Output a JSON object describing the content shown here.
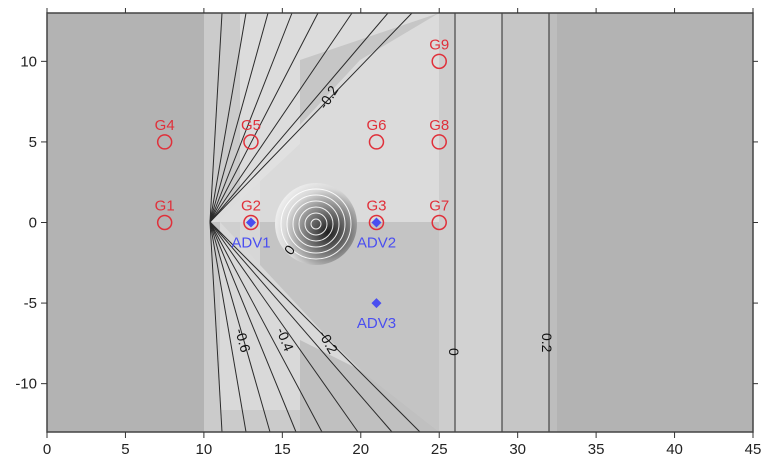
{
  "colors": {
    "background": "#b3b3b3",
    "gauge": "#e0303a",
    "adv": "#4a4ef0",
    "contour": "#2b2b2b"
  },
  "chart_data": {
    "type": "contour",
    "xlim": [
      0,
      45
    ],
    "ylim": [
      -13,
      13
    ],
    "x_ticks": [
      "0",
      "5",
      "10",
      "15",
      "20",
      "25",
      "30",
      "35",
      "40",
      "45"
    ],
    "y_ticks": [
      "10",
      "5",
      "0",
      "-5",
      "-10"
    ],
    "grid": false,
    "gauges": [
      {
        "name": "G1",
        "x": 7.5,
        "y": 0
      },
      {
        "name": "G2",
        "x": 13,
        "y": 0
      },
      {
        "name": "G3",
        "x": 21,
        "y": 0
      },
      {
        "name": "G4",
        "x": 7.5,
        "y": 5
      },
      {
        "name": "G5",
        "x": 13,
        "y": 5
      },
      {
        "name": "G6",
        "x": 21,
        "y": 5
      },
      {
        "name": "G7",
        "x": 25,
        "y": 0
      },
      {
        "name": "G8",
        "x": 25,
        "y": 5
      },
      {
        "name": "G9",
        "x": 25,
        "y": 10
      }
    ],
    "adv_points": [
      {
        "name": "ADV1",
        "x": 13,
        "y": 0
      },
      {
        "name": "ADV2",
        "x": 21,
        "y": 0
      },
      {
        "name": "ADV3",
        "x": 21,
        "y": -5
      }
    ],
    "contour_labels": [
      "-0.2",
      "0",
      "-0.6",
      "-0.4",
      "-0.2",
      "0",
      "0.2"
    ]
  }
}
